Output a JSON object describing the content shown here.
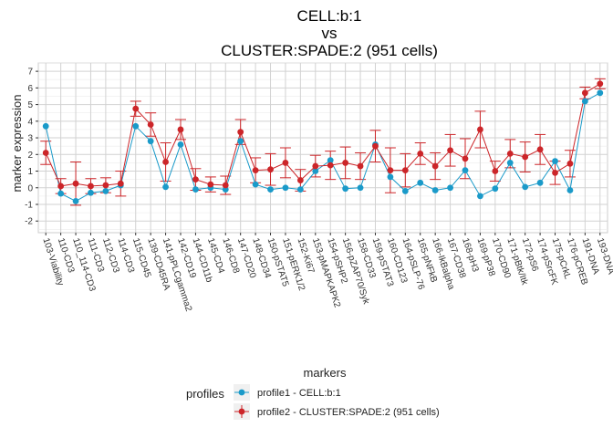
{
  "chart_data": {
    "type": "line",
    "title_lines": [
      "CELL:b:1",
      "vs",
      "CLUSTER:SPADE:2 (951 cells)"
    ],
    "xlabel": "markers",
    "ylabel": "marker expression",
    "ylim": [
      -2.7,
      7.5
    ],
    "yticks": [
      -2,
      -1,
      0,
      1,
      2,
      3,
      4,
      5,
      6,
      7
    ],
    "grid": true,
    "legend_placement": "bottom",
    "legend_title": "profiles",
    "categories": [
      "103-Viability",
      "110-CD3",
      "110_114-CD3",
      "111-CD3",
      "112-CD3",
      "114-CD3",
      "115-CD45",
      "139-CD45RA",
      "141-pPLCgamma2",
      "142-CD19",
      "144-CD11b",
      "145-CD4",
      "146-CD8",
      "147-CD20",
      "148-CD34",
      "150-pSTAT5",
      "151-pERK1/2",
      "152-Ki67",
      "153-pMAPKAPK2",
      "154-pSHP2",
      "156-pZAP70/Syk",
      "158-CD33",
      "159-pSTAT3",
      "160-CD123",
      "164-pSLP-76",
      "165-pNFkB",
      "166-IkBalpha",
      "167-CD38",
      "168-pH3",
      "169-pP38",
      "170-CD90",
      "171-pBtk/Itk",
      "172-pS6",
      "174-pSrcFK",
      "175-pCrkL",
      "176-pCREB",
      "191-DNA",
      "193-DNA"
    ],
    "series": [
      {
        "name": "profile1 - CELL:b:1",
        "color": "#1a9ac9",
        "values": [
          3.7,
          -0.35,
          -0.8,
          -0.3,
          -0.2,
          0.15,
          3.7,
          2.8,
          0.05,
          2.6,
          -0.1,
          0.0,
          -0.1,
          2.8,
          0.2,
          -0.1,
          0.0,
          -0.1,
          1.0,
          1.65,
          -0.05,
          0.0,
          2.6,
          0.65,
          -0.2,
          0.3,
          -0.15,
          0.0,
          1.05,
          -0.5,
          -0.05,
          1.5,
          0.05,
          0.3,
          1.6,
          -0.15,
          5.2,
          5.7
        ]
      },
      {
        "name": "profile2 - CLUSTER:SPADE:2 (951 cells)",
        "color": "#cc2529",
        "values": [
          2.1,
          0.1,
          0.25,
          0.1,
          0.15,
          0.25,
          4.75,
          3.8,
          1.55,
          3.5,
          0.5,
          0.2,
          0.15,
          3.35,
          1.05,
          1.1,
          1.5,
          0.45,
          1.3,
          1.35,
          1.5,
          1.3,
          2.5,
          1.05,
          1.05,
          2.05,
          1.3,
          2.25,
          1.75,
          3.5,
          1.0,
          2.05,
          1.85,
          2.3,
          0.9,
          1.45,
          5.7,
          6.25
        ],
        "errors": [
          0.7,
          0.45,
          1.3,
          0.45,
          0.45,
          0.75,
          0.45,
          0.7,
          1.15,
          0.6,
          0.65,
          0.45,
          0.55,
          0.75,
          0.75,
          0.95,
          0.9,
          0.65,
          0.65,
          0.85,
          0.95,
          0.8,
          0.95,
          1.35,
          1.0,
          0.65,
          0.8,
          0.95,
          1.2,
          1.1,
          0.6,
          0.85,
          0.9,
          0.9,
          0.7,
          0.8,
          0.35,
          0.3
        ]
      }
    ]
  }
}
